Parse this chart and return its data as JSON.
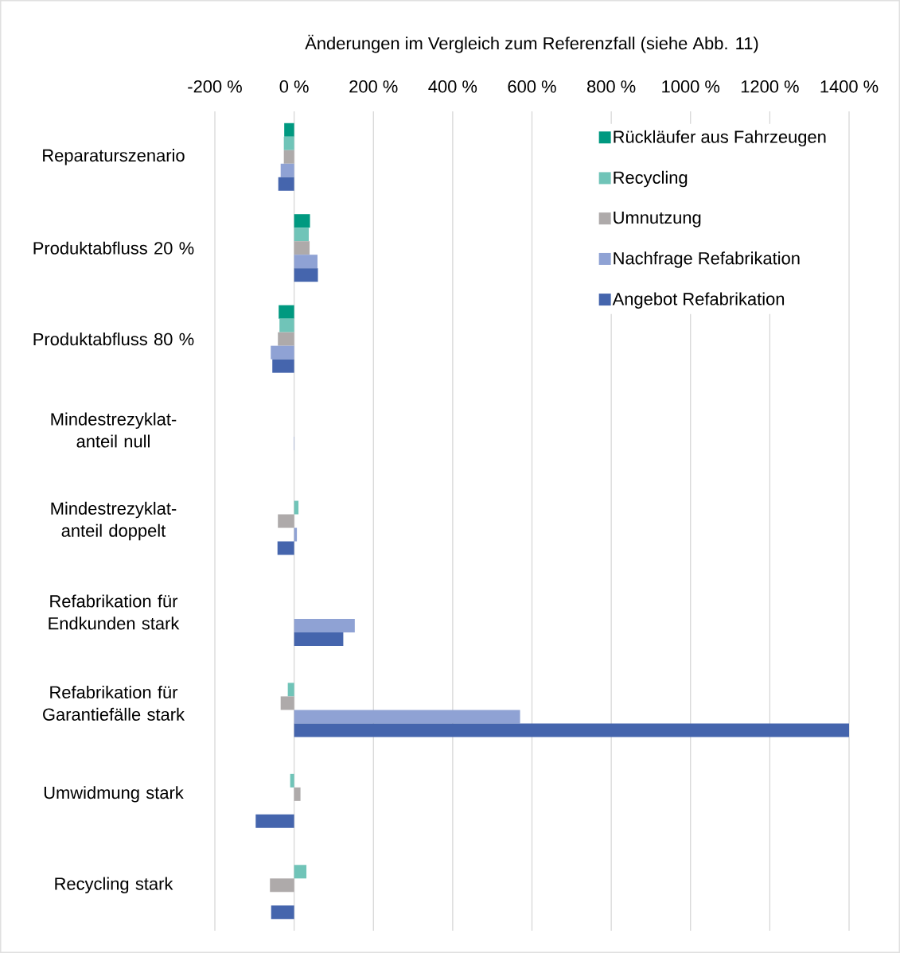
{
  "chart_data": {
    "type": "bar",
    "orientation": "horizontal",
    "xlabel": "Änderungen im Vergleich zum Referenzfall (siehe Abb. 11)",
    "categories": [
      "Reparaturszenario",
      "Produktabfluss 20 %",
      "Produktabfluss 80 %",
      "Mindestrezyklat-anteil null",
      "Mindestrezyklat-anteil doppelt",
      "Refabrikation für Endkunden stark",
      "Refabrikation für Garantiefälle stark",
      "Umwidmung stark",
      "Recycling stark"
    ],
    "series": [
      {
        "name": "Rückläufer aus Fahrzeugen",
        "color": "#009980",
        "values": [
          -25,
          40,
          -39,
          0,
          0,
          0,
          null,
          0,
          0
        ]
      },
      {
        "name": "Recycling",
        "color": "#70c4b8",
        "values": [
          -26,
          37,
          -37,
          null,
          11,
          null,
          -16,
          -10,
          31
        ]
      },
      {
        "name": "Umnutzung",
        "color": "#aeaaaa",
        "values": [
          -26,
          39,
          -41,
          0,
          -41,
          0,
          -34,
          16,
          -61
        ]
      },
      {
        "name": "Nachfrage Refabrikation",
        "color": "#8fa2d4",
        "values": [
          -34,
          59,
          -59,
          -1,
          7,
          153,
          570,
          0,
          0
        ]
      },
      {
        "name": "Angebot Refabrikation",
        "color": "#4565ad",
        "values": [
          -40,
          60,
          -55,
          0,
          -42,
          124,
          1400,
          -97,
          -58
        ]
      }
    ],
    "xlim": [
      -200,
      1400
    ],
    "xticks": [
      {
        "value": -200,
        "label": "-200 %"
      },
      {
        "value": 0,
        "label": "0 %"
      },
      {
        "value": 200,
        "label": "200 %"
      },
      {
        "value": 400,
        "label": "400 %"
      },
      {
        "value": 600,
        "label": "600 %"
      },
      {
        "value": 800,
        "label": "800 %"
      },
      {
        "value": 1000,
        "label": "1000 %"
      },
      {
        "value": 1200,
        "label": "1200 %"
      },
      {
        "value": 1400,
        "label": "1400 %"
      }
    ],
    "grid": "x",
    "legend": "top right"
  }
}
